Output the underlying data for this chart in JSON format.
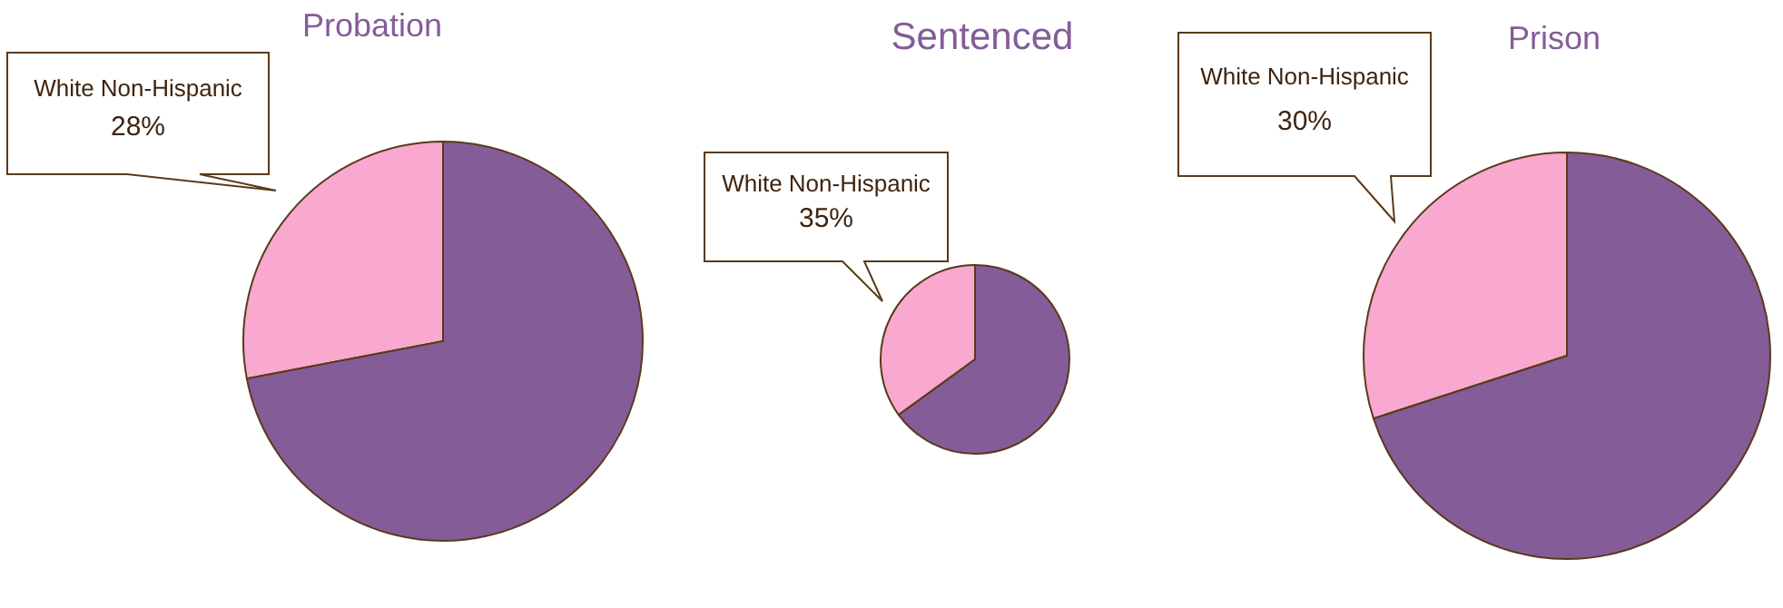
{
  "chart_data": [
    {
      "type": "pie",
      "title": "Probation",
      "categories": [
        "White Non-Hispanic",
        null
      ],
      "values": [
        28,
        72
      ],
      "colors": [
        "#f9a8cf",
        "#845c98"
      ],
      "value_labels": [
        "28%",
        null
      ]
    },
    {
      "type": "pie",
      "title": "Sentenced",
      "categories": [
        "White Non-Hispanic",
        null
      ],
      "values": [
        35,
        65
      ],
      "colors": [
        "#f9a8cf",
        "#845c98"
      ],
      "value_labels": [
        "35%",
        null
      ]
    },
    {
      "type": "pie",
      "title": "Prison",
      "categories": [
        "White Non-Hispanic",
        null
      ],
      "values": [
        30,
        70
      ],
      "colors": [
        "#f9a8cf",
        "#845c98"
      ],
      "value_labels": [
        "30%",
        null
      ]
    }
  ]
}
